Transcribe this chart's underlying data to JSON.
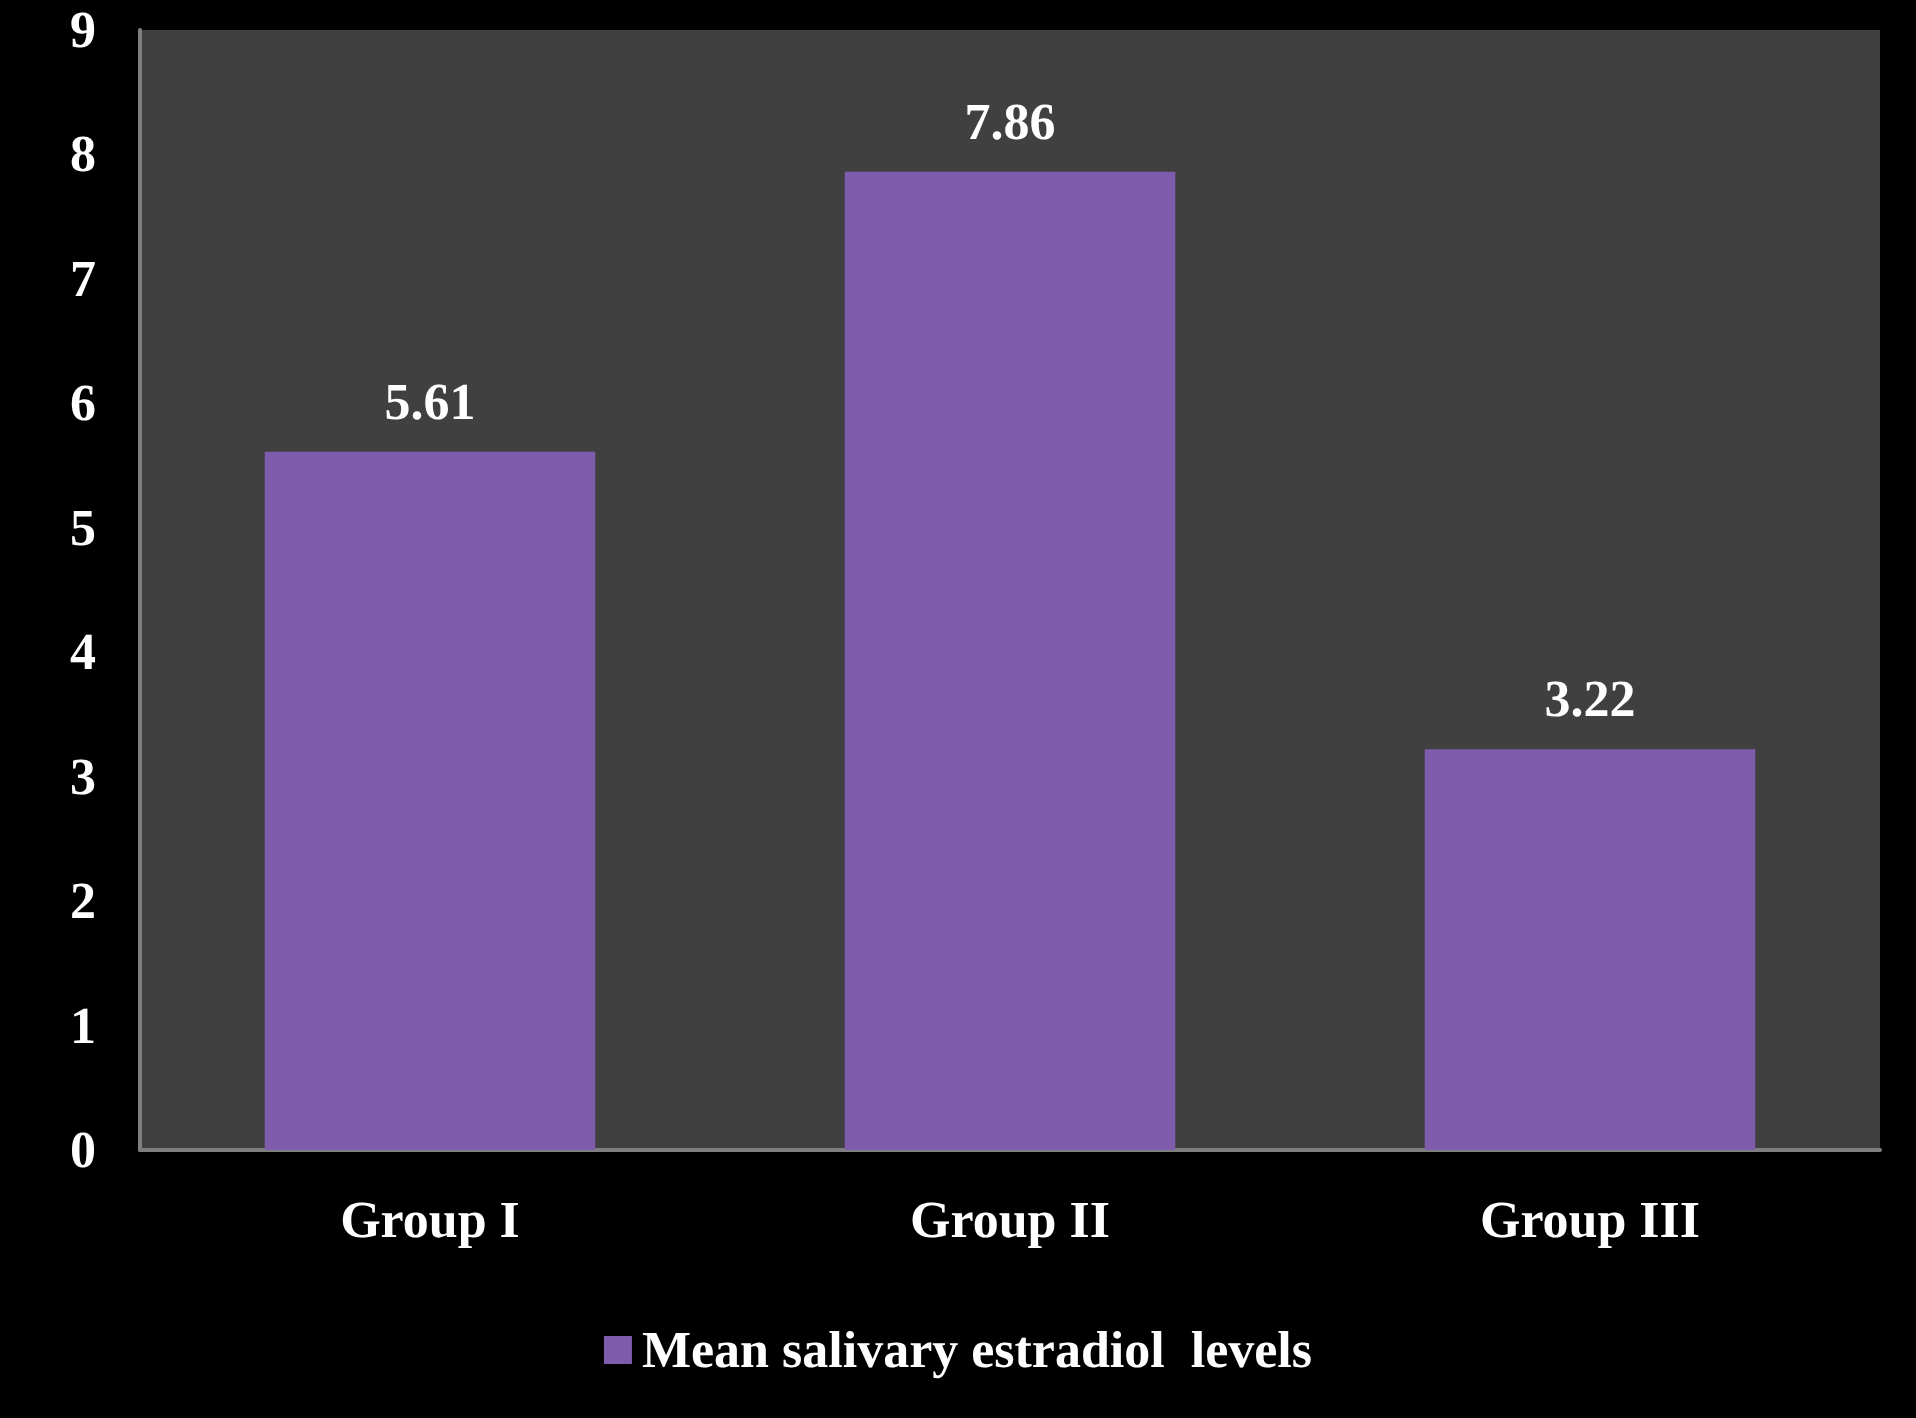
{
  "chart_data": {
    "type": "bar",
    "categories": [
      "Group I",
      "Group II",
      "Group III"
    ],
    "series": [
      {
        "name": "Mean salivary estradiol  levels",
        "color": "#7e5bab",
        "values": [
          5.61,
          7.86,
          3.22
        ]
      }
    ],
    "ylim": [
      0,
      9
    ],
    "yticks": [
      0,
      1,
      2,
      3,
      4,
      5,
      6,
      7,
      8,
      9
    ],
    "grid": false,
    "legend": "bottom",
    "data_labels": true
  }
}
